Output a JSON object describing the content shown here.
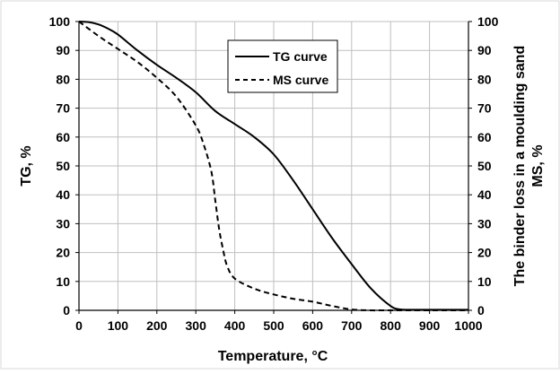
{
  "chart_data": {
    "type": "line",
    "xlabel": "Temperature, °C",
    "ylabel": "TG, %",
    "y2label": [
      "The binder loss in a moulding sand",
      "MS, %"
    ],
    "xlim": [
      0,
      1000
    ],
    "ylim": [
      0,
      100
    ],
    "y2lim": [
      0,
      100
    ],
    "xticks": [
      0,
      100,
      200,
      300,
      400,
      500,
      600,
      700,
      800,
      900,
      1000
    ],
    "yticks": [
      0,
      10,
      20,
      30,
      40,
      50,
      60,
      70,
      80,
      90,
      100
    ],
    "grid": true,
    "legend_position": "top-center",
    "series": [
      {
        "name": "TG curve",
        "style": "solid",
        "color": "#000000",
        "x": [
          0,
          25,
          50,
          75,
          100,
          150,
          200,
          250,
          300,
          350,
          400,
          450,
          500,
          550,
          600,
          650,
          700,
          750,
          800,
          825,
          850,
          900,
          1000
        ],
        "y": [
          100,
          99.8,
          99,
          97.5,
          95.5,
          90,
          85,
          80.5,
          75.5,
          69,
          64.5,
          60,
          54,
          45,
          35,
          25,
          16,
          7.5,
          1.5,
          0.3,
          0.2,
          0.2,
          0.2
        ]
      },
      {
        "name": "MS curve",
        "style": "dashed",
        "color": "#000000",
        "x": [
          0,
          50,
          100,
          150,
          200,
          250,
          300,
          320,
          340,
          350,
          360,
          370,
          380,
          400,
          450,
          500,
          550,
          600,
          650,
          700,
          750,
          800,
          1000
        ],
        "y": [
          100,
          95,
          90.5,
          86,
          80.5,
          74,
          64,
          57.5,
          48,
          38,
          28,
          21,
          15.5,
          11,
          7.5,
          5.5,
          4,
          3,
          1.5,
          0.3,
          0,
          0,
          0
        ]
      }
    ]
  }
}
